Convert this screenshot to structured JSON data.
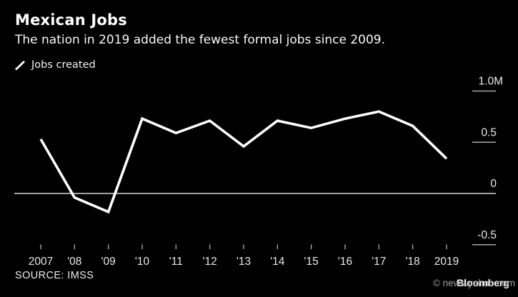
{
  "header": {
    "title": "Mexican Jobs",
    "subtitle": "The nation in 2019 added the fewest formal jobs since 2009."
  },
  "legend": {
    "items": [
      {
        "icon": "line-swatch-icon",
        "label": "Jobs created"
      }
    ]
  },
  "footer": {
    "source": "SOURCE: IMSS"
  },
  "watermark": {
    "brand": "Bloomberg",
    "site_credit": "© news.yahoo.com"
  },
  "colors": {
    "background": "#000000",
    "line": "#ffffff",
    "axis_text": "#e9e9e9",
    "tick": "#a8a8a8",
    "zero_line": "#d6d6d6",
    "muted_text": "#a5a5a5"
  },
  "chart_data": {
    "type": "line",
    "title": "Mexican Jobs",
    "subtitle": "The nation in 2019 added the fewest formal jobs since 2009.",
    "categories": [
      "2007",
      "'08",
      "'09",
      "'10",
      "'11",
      "'12",
      "'13",
      "'14",
      "'15",
      "'16",
      "'17",
      "'18",
      "2019"
    ],
    "series": [
      {
        "name": "Jobs created",
        "values": [
          0.53,
          -0.04,
          -0.18,
          0.73,
          0.59,
          0.71,
          0.46,
          0.71,
          0.64,
          0.73,
          0.8,
          0.66,
          0.34
        ]
      }
    ],
    "unit": "M",
    "yticks": [
      {
        "label": "1.0M",
        "value": 1.0
      },
      {
        "label": "0.5",
        "value": 0.5
      },
      {
        "label": "0",
        "value": 0
      },
      {
        "label": "-0.5",
        "value": -0.5
      }
    ],
    "ylim": [
      -0.6,
      1.1
    ],
    "grid": false,
    "legend_position": "top-left",
    "zero_baseline": true,
    "source": "IMSS"
  }
}
